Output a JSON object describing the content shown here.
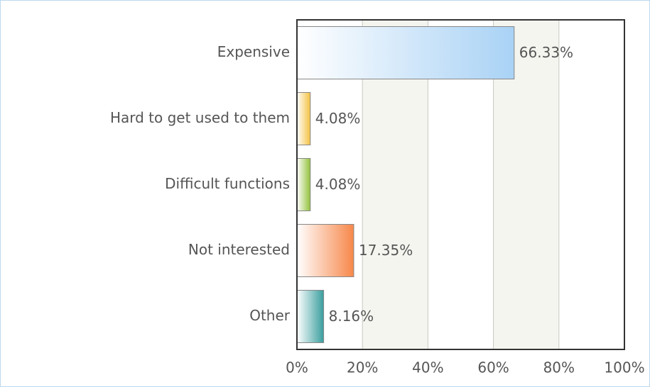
{
  "chart_data": {
    "type": "barh",
    "categories": [
      "Expensive",
      "Hard to get used to them",
      "Difficult functions",
      "Not interested",
      "Other"
    ],
    "values": [
      66.33,
      4.08,
      4.08,
      17.35,
      8.16
    ],
    "value_labels": [
      "66.33%",
      "4.08%",
      "4.08%",
      "17.35%",
      "8.16%"
    ],
    "colors": [
      "#a9d2f5",
      "#f5c242",
      "#93c13a",
      "#f7874a",
      "#3a9e9e"
    ],
    "xlim": [
      0,
      100
    ],
    "xticks": [
      {
        "value": 0,
        "label": "0%"
      },
      {
        "value": 20,
        "label": "20%"
      },
      {
        "value": 40,
        "label": "40%"
      },
      {
        "value": 60,
        "label": "60%"
      },
      {
        "value": 80,
        "label": "80%"
      },
      {
        "value": 100,
        "label": "100%"
      }
    ],
    "grid": true
  }
}
